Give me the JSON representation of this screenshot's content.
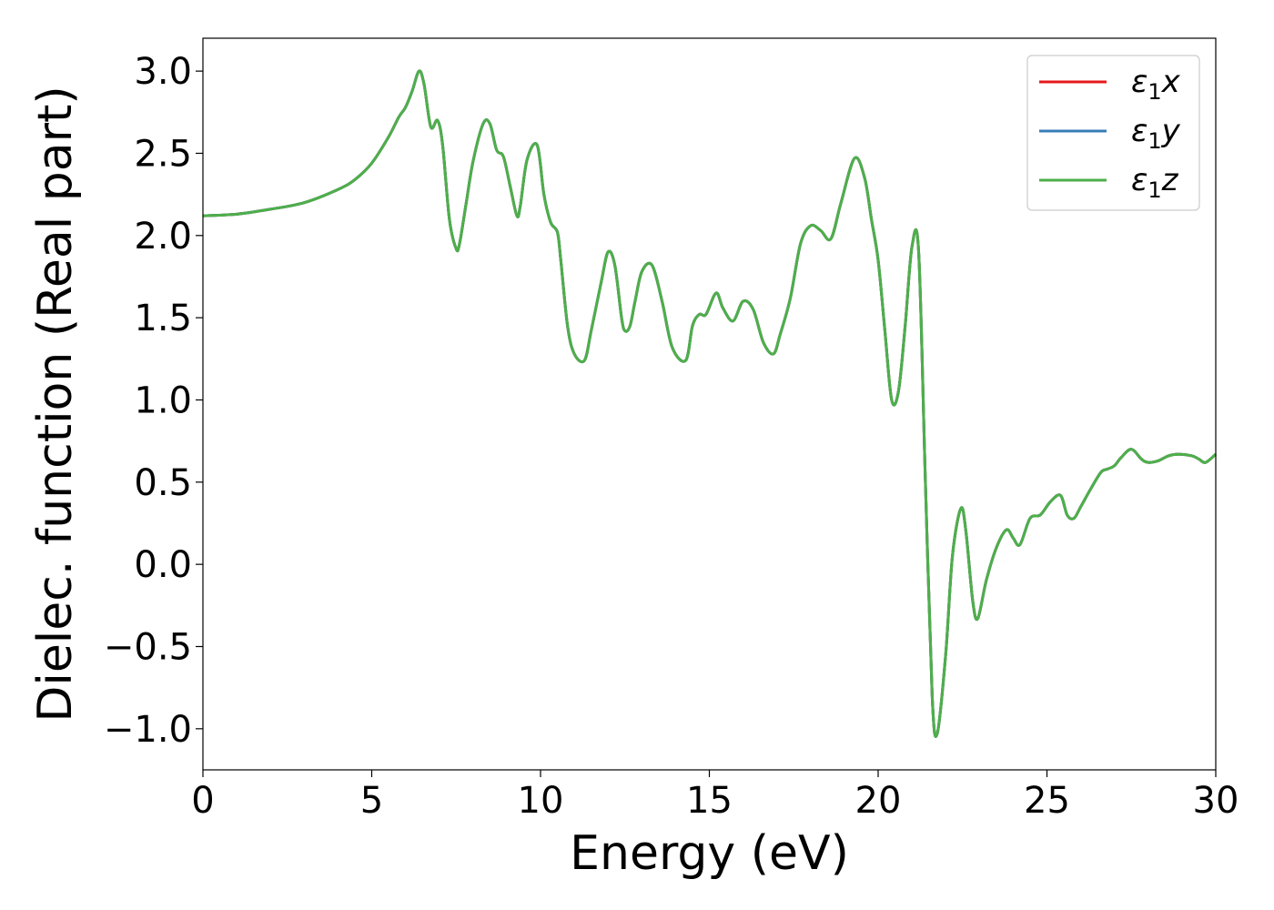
{
  "chart_data": {
    "type": "line",
    "xlabel": "Energy (eV)",
    "ylabel": "Dielec. function (Real part)",
    "xlim": [
      0,
      30
    ],
    "ylim": [
      -1.25,
      3.2
    ],
    "x_ticks": [
      0,
      5,
      10,
      15,
      20,
      25,
      30
    ],
    "x_tick_labels": [
      "0",
      "5",
      "10",
      "15",
      "20",
      "25",
      "30"
    ],
    "y_ticks": [
      -1.0,
      -0.5,
      0.0,
      0.5,
      1.0,
      1.5,
      2.0,
      2.5,
      3.0
    ],
    "y_tick_labels": [
      "−1.0",
      "−0.5",
      "0.0",
      "0.5",
      "1.0",
      "1.5",
      "2.0",
      "2.5",
      "3.0"
    ],
    "grid": false,
    "legend_position": "top-right",
    "series": [
      {
        "name": "ε1x",
        "color": "#e41a1c"
      },
      {
        "name": "ε1y",
        "color": "#377eb8"
      },
      {
        "name": "ε1z",
        "color": "#4daf4a"
      }
    ],
    "x": [
      0,
      1,
      2,
      3,
      4,
      4.5,
      5,
      5.5,
      5.8,
      6.0,
      6.2,
      6.4,
      6.55,
      6.75,
      6.95,
      7.1,
      7.3,
      7.5,
      7.6,
      7.8,
      8.0,
      8.3,
      8.5,
      8.7,
      8.9,
      9.1,
      9.3,
      9.4,
      9.6,
      9.9,
      10.1,
      10.3,
      10.5,
      10.6,
      10.8,
      11.0,
      11.3,
      11.5,
      11.8,
      12.0,
      12.2,
      12.4,
      12.5,
      12.65,
      12.8,
      13.0,
      13.3,
      13.6,
      13.9,
      14.3,
      14.5,
      14.7,
      14.9,
      15.2,
      15.4,
      15.7,
      16.0,
      16.3,
      16.6,
      16.9,
      17.1,
      17.4,
      17.7,
      18.0,
      18.3,
      18.6,
      18.9,
      19.3,
      19.6,
      19.8,
      20.0,
      20.2,
      20.4,
      20.6,
      20.8,
      21.0,
      21.2,
      21.4,
      21.6,
      21.75,
      22.0,
      22.2,
      22.45,
      22.6,
      22.8,
      22.95,
      23.2,
      23.5,
      23.8,
      24.0,
      24.2,
      24.5,
      24.8,
      25.1,
      25.4,
      25.6,
      25.8,
      26.0,
      26.3,
      26.6,
      26.8,
      27.0,
      27.2,
      27.5,
      27.8,
      28.0,
      28.3,
      28.6,
      28.9,
      29.3,
      29.5,
      29.7,
      30.0
    ],
    "values": [
      2.12,
      2.13,
      2.16,
      2.2,
      2.28,
      2.34,
      2.44,
      2.6,
      2.72,
      2.78,
      2.88,
      3.0,
      2.92,
      2.66,
      2.7,
      2.55,
      2.1,
      1.92,
      1.95,
      2.2,
      2.45,
      2.68,
      2.68,
      2.52,
      2.48,
      2.3,
      2.12,
      2.18,
      2.46,
      2.55,
      2.25,
      2.08,
      2.02,
      1.85,
      1.45,
      1.28,
      1.24,
      1.42,
      1.72,
      1.9,
      1.82,
      1.5,
      1.42,
      1.45,
      1.6,
      1.78,
      1.82,
      1.6,
      1.32,
      1.24,
      1.45,
      1.52,
      1.52,
      1.65,
      1.56,
      1.48,
      1.6,
      1.55,
      1.35,
      1.28,
      1.4,
      1.62,
      1.95,
      2.06,
      2.03,
      1.98,
      2.2,
      2.47,
      2.35,
      2.1,
      1.85,
      1.42,
      1.0,
      1.05,
      1.45,
      1.93,
      1.9,
      0.5,
      -0.8,
      -1.03,
      -0.55,
      0.05,
      0.34,
      0.2,
      -0.22,
      -0.33,
      -0.1,
      0.1,
      0.21,
      0.16,
      0.12,
      0.28,
      0.3,
      0.38,
      0.42,
      0.3,
      0.28,
      0.35,
      0.46,
      0.56,
      0.58,
      0.6,
      0.65,
      0.7,
      0.64,
      0.62,
      0.63,
      0.66,
      0.67,
      0.66,
      0.64,
      0.62,
      0.67
    ]
  }
}
